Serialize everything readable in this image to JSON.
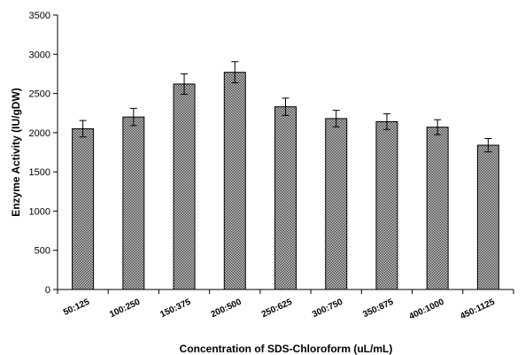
{
  "chart_data": {
    "type": "bar",
    "title": "",
    "xlabel": "Concentration of SDS-Chloroform (uL/mL)",
    "ylabel": "Enzyme Activity (IU/gDW)",
    "categories": [
      "50:125",
      "100:250",
      "150:375",
      "200:500",
      "250:625",
      "300:750",
      "350:875",
      "400:1000",
      "450:1125"
    ],
    "values": [
      2050,
      2200,
      2620,
      2770,
      2330,
      2180,
      2140,
      2070,
      1840
    ],
    "errors": [
      105,
      110,
      130,
      135,
      110,
      105,
      100,
      95,
      85
    ],
    "ylim": [
      0,
      3500
    ],
    "yticks": [
      0,
      500,
      1000,
      1500,
      2000,
      2500,
      3000,
      3500
    ],
    "grid": false,
    "legend": "none",
    "bar_fill": "#8a8a8a",
    "bar_pattern": "crosshatch"
  }
}
